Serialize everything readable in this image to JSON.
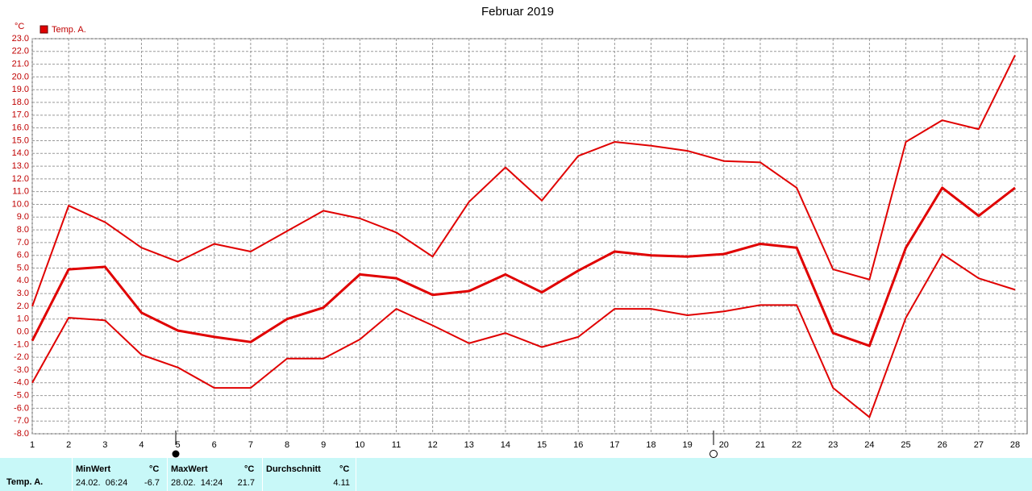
{
  "chart_data": {
    "type": "line",
    "title": "Februar 2019",
    "y_unit": "°C",
    "x": [
      1,
      2,
      3,
      4,
      5,
      6,
      7,
      8,
      9,
      10,
      11,
      12,
      13,
      14,
      15,
      16,
      17,
      18,
      19,
      20,
      21,
      22,
      23,
      24,
      25,
      26,
      27,
      28
    ],
    "xlim": [
      1,
      28
    ],
    "xticks": [
      1,
      2,
      3,
      4,
      5,
      6,
      7,
      8,
      9,
      10,
      11,
      12,
      13,
      14,
      15,
      16,
      17,
      18,
      19,
      20,
      21,
      22,
      23,
      24,
      25,
      26,
      27,
      28
    ],
    "ylim": [
      -8,
      23
    ],
    "yticks": [
      {
        "value": -8,
        "label": "-8.0"
      },
      {
        "value": -7,
        "label": "-7.0"
      },
      {
        "value": -6,
        "label": "-6.0"
      },
      {
        "value": -5,
        "label": "-5.0"
      },
      {
        "value": -4,
        "label": "-4.0"
      },
      {
        "value": -3,
        "label": "-3.0"
      },
      {
        "value": -2,
        "label": "-2.0"
      },
      {
        "value": -1,
        "label": "-1.0"
      },
      {
        "value": 0,
        "label": "0.0"
      },
      {
        "value": 1,
        "label": "1.0"
      },
      {
        "value": 2,
        "label": "2.0"
      },
      {
        "value": 3,
        "label": "3.0"
      },
      {
        "value": 4,
        "label": "4.0"
      },
      {
        "value": 5,
        "label": "5.0"
      },
      {
        "value": 6,
        "label": "6.0"
      },
      {
        "value": 7,
        "label": "7.0"
      },
      {
        "value": 8,
        "label": "8.0"
      },
      {
        "value": 9,
        "label": "9.0"
      },
      {
        "value": 10,
        "label": "10.0"
      },
      {
        "value": 11,
        "label": "11.0"
      },
      {
        "value": 12,
        "label": "12.0"
      },
      {
        "value": 13,
        "label": "13.0"
      },
      {
        "value": 14,
        "label": "14.0"
      },
      {
        "value": 15,
        "label": "15.0"
      },
      {
        "value": 16,
        "label": "16.0"
      },
      {
        "value": 17,
        "label": "17.0"
      },
      {
        "value": 18,
        "label": "18.0"
      },
      {
        "value": 19,
        "label": "19.0"
      },
      {
        "value": 20,
        "label": "20.0"
      },
      {
        "value": 21,
        "label": "21.0"
      },
      {
        "value": 22,
        "label": "22.0"
      },
      {
        "value": 23,
        "label": "23.0"
      }
    ],
    "grid": true,
    "series": [
      {
        "color": "#e00000",
        "values": [
          2.0,
          9.9,
          8.6,
          6.6,
          5.5,
          6.9,
          6.3,
          7.9,
          9.5,
          8.9,
          7.8,
          5.9,
          10.2,
          12.9,
          10.3,
          13.8,
          14.9,
          14.6,
          14.2,
          13.4,
          13.3,
          11.3,
          4.9,
          4.1,
          14.9,
          16.6,
          15.9,
          21.7
        ]
      },
      {
        "name": "Temp. A.",
        "color": "#e00000",
        "values": [
          -0.7,
          4.9,
          5.1,
          1.5,
          0.1,
          -0.4,
          -0.8,
          1.0,
          1.9,
          4.5,
          4.2,
          2.9,
          3.2,
          4.5,
          3.1,
          4.8,
          6.3,
          6.0,
          5.9,
          6.1,
          6.9,
          6.6,
          -0.1,
          -1.1,
          6.6,
          11.3,
          9.1,
          11.3
        ]
      },
      {
        "color": "#e00000",
        "values": [
          -4.0,
          1.1,
          0.9,
          -1.8,
          -2.8,
          -4.4,
          -4.4,
          -2.1,
          -2.1,
          -0.6,
          1.8,
          0.5,
          -0.9,
          -0.1,
          -1.2,
          -0.4,
          1.8,
          1.8,
          1.3,
          1.6,
          2.1,
          2.1,
          -4.4,
          -6.7,
          1.1,
          6.1,
          4.2,
          3.3
        ]
      }
    ]
  },
  "summary": {
    "row_label": "Temp. A.",
    "min": {
      "header": "MinWert",
      "unit": "°C",
      "time": "24.02.  06:24",
      "value": -6.7
    },
    "max": {
      "header": "MaxWert",
      "unit": "°C",
      "time": "28.02.  14:24",
      "value": 21.7
    },
    "avg": {
      "header": "Durchschnitt",
      "unit": "°C",
      "value": 4.11
    }
  }
}
